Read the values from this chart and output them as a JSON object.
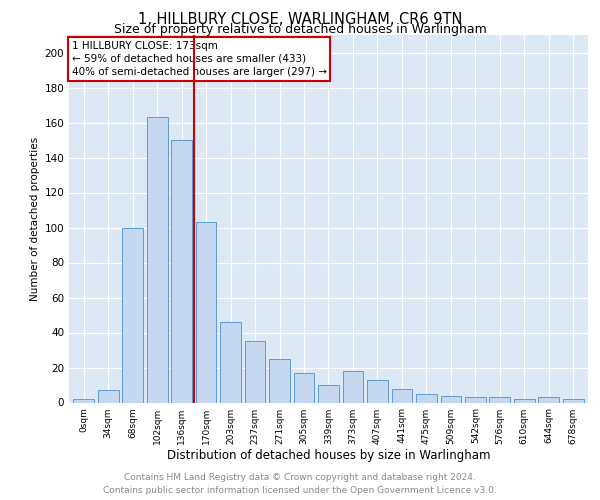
{
  "title": "1, HILLBURY CLOSE, WARLINGHAM, CR6 9TN",
  "subtitle": "Size of property relative to detached houses in Warlingham",
  "xlabel": "Distribution of detached houses by size in Warlingham",
  "ylabel": "Number of detached properties",
  "categories": [
    "0sqm",
    "34sqm",
    "68sqm",
    "102sqm",
    "136sqm",
    "170sqm",
    "203sqm",
    "237sqm",
    "271sqm",
    "305sqm",
    "339sqm",
    "373sqm",
    "407sqm",
    "441sqm",
    "475sqm",
    "509sqm",
    "542sqm",
    "576sqm",
    "610sqm",
    "644sqm",
    "678sqm"
  ],
  "values": [
    2,
    7,
    100,
    163,
    150,
    103,
    46,
    35,
    25,
    17,
    10,
    18,
    13,
    8,
    5,
    4,
    3,
    3,
    2,
    3,
    2
  ],
  "bar_color": "#c5d8f0",
  "bar_edge_color": "#5b9bd5",
  "property_line_color": "#cc0000",
  "annotation_box_color": "#cc0000",
  "annotation_lines": [
    "1 HILLBURY CLOSE: 173sqm",
    "← 59% of detached houses are smaller (433)",
    "40% of semi-detached houses are larger (297) →"
  ],
  "ylim": [
    0,
    210
  ],
  "yticks": [
    0,
    20,
    40,
    60,
    80,
    100,
    120,
    140,
    160,
    180,
    200
  ],
  "footer_line1": "Contains HM Land Registry data © Crown copyright and database right 2024.",
  "footer_line2": "Contains public sector information licensed under the Open Government Licence v3.0.",
  "plot_bg_color": "#dce9f5",
  "grid_color": "#ffffff",
  "title_fontsize": 10.5,
  "subtitle_fontsize": 9,
  "xlabel_fontsize": 8.5,
  "ylabel_fontsize": 7.5,
  "tick_fontsize": 6.5,
  "footer_fontsize": 6.5,
  "annotation_fontsize": 7.5
}
